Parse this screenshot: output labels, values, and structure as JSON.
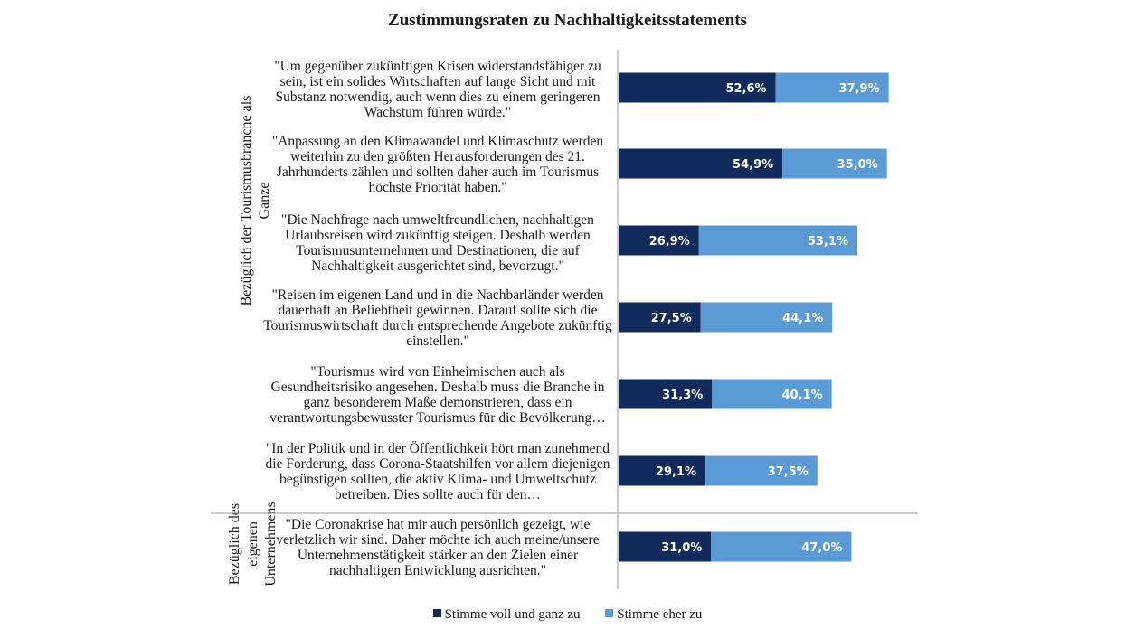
{
  "chart_data": {
    "type": "bar",
    "stacked": true,
    "orientation": "horizontal",
    "title": "Zustimmungsraten zu Nachhaltigkeitsstatements",
    "groups": [
      "Bezüglich der Tourismusbranche als Ganze",
      "Bezüglich des eigenen Unternehmens"
    ],
    "categories": [
      "\"Um gegenüber zukünftigen Krisen widerstandsfähiger zu sein, ist ein solides Wirtschaften auf lange Sicht und mit Substanz notwendig, auch wenn dies zu einem geringeren Wachstum führen würde.\"",
      "\"Anpassung an den Klimawandel und Klimaschutz werden weiterhin zu den größten Herausforderungen des 21. Jahrhunderts zählen und sollten daher auch im Tourismus höchste Priorität haben.\"",
      "\"Die Nachfrage nach umweltfreundlichen, nachhaltigen Urlaubsreisen wird zukünftig steigen. Deshalb werden Tourismusunternehmen und Destinationen, die auf Nachhaltigkeit ausgerichtet sind, bevorzugt.\"",
      "\"Reisen im eigenen Land und in die Nachbarländer werden dauerhaft an Beliebtheit gewinnen. Darauf sollte sich die Tourismuswirtschaft durch entsprechende Angebote zukünftig einstellen.\"",
      "\"Tourismus wird von Einheimischen auch als Gesundheitsrisiko angesehen. Deshalb muss die Branche in ganz besonderem Maße demonstrieren, dass ein verantwortungsbewusster Tourismus für die Bevölkerung…",
      "\"In der Politik und in der Öffentlichkeit hört man zunehmend die Forderung, dass Corona-Staatshilfen vor allem diejenigen begünstigen sollten, die aktiv Klima- und Umweltschutz betreiben. Dies sollte auch für den…",
      "\"Die Coronakrise hat mir auch persönlich gezeigt, wie verletzlich wir sind. Daher möchte ich auch meine/unsere Unternehmenstätigkeit stärker an den Zielen einer nachhaltigen Entwicklung ausrichten.\""
    ],
    "category_group": [
      0,
      0,
      0,
      0,
      0,
      0,
      1
    ],
    "series": [
      {
        "name": "Stimme voll und ganz zu",
        "color": "#102a5c",
        "values": [
          52.6,
          54.9,
          26.9,
          27.5,
          31.3,
          29.1,
          31.0
        ],
        "labels": [
          "52,6%",
          "54,9%",
          "26,9%",
          "27,5%",
          "31,3%",
          "29,1%",
          "31,0%"
        ]
      },
      {
        "name": "Stimme eher zu",
        "color": "#5b9bd5",
        "values": [
          37.9,
          35.0,
          53.1,
          44.1,
          40.1,
          37.5,
          47.0
        ],
        "labels": [
          "37,9%",
          "35,0%",
          "53,1%",
          "44,1%",
          "40,1%",
          "37,5%",
          "47,0%"
        ]
      }
    ],
    "xlim": [
      0,
      100
    ],
    "grid": false,
    "legend_position": "bottom"
  }
}
